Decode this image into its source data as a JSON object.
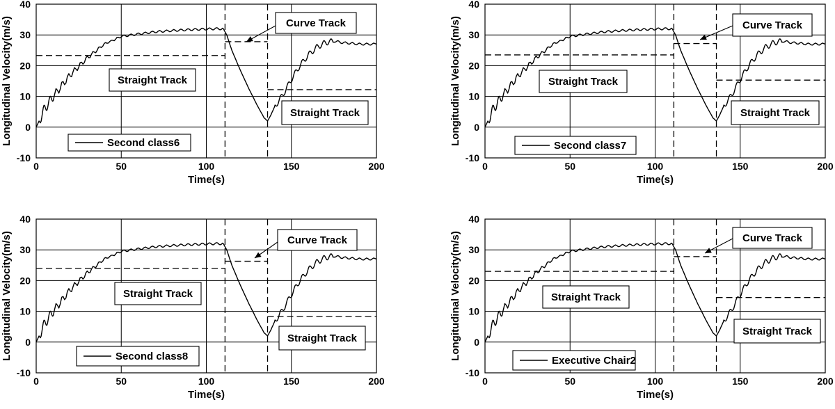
{
  "chart_data": [
    {
      "type": "line",
      "xlabel": "Time(s)",
      "ylabel": "Longitudinal Velocity(m/s)",
      "xlim": [
        0,
        200
      ],
      "ylim": [
        -10,
        40
      ],
      "xticks": [
        "0",
        "50",
        "100",
        "150",
        "200"
      ],
      "yticks": [
        "-10",
        "0",
        "10",
        "20",
        "30",
        "40"
      ],
      "grid": true,
      "legend_position": "bottom-left",
      "series": [
        {
          "name": "Second class6",
          "x": [
            0,
            5,
            10,
            20,
            30,
            40,
            50,
            60,
            70,
            80,
            90,
            100,
            105,
            110,
            112,
            115,
            120,
            125,
            130,
            134,
            136,
            138,
            140,
            145,
            150,
            155,
            160,
            165,
            170,
            175,
            180,
            190,
            200
          ],
          "y": [
            0,
            6,
            10,
            17,
            22.5,
            27,
            29.5,
            30.3,
            31,
            31.4,
            31.7,
            31.9,
            32,
            32,
            30,
            25,
            18.5,
            12.5,
            7,
            3,
            2,
            4,
            6.5,
            10.5,
            15.5,
            20,
            23.5,
            26,
            27.5,
            28,
            27.5,
            27,
            27
          ]
        }
      ],
      "reference_lines": {
        "segment_boundaries": [
          111,
          136
        ],
        "straight_track_1": {
          "x": [
            0,
            111
          ],
          "y": 23.3
        },
        "curve_track": {
          "x": [
            111,
            136
          ],
          "y": 27.8
        },
        "straight_track_2": {
          "x": [
            136,
            200
          ],
          "y": 12.2
        }
      },
      "annotations": {
        "curve": "Curve Track",
        "straight_left": "Straight Track",
        "straight_right": "Straight Track"
      }
    },
    {
      "type": "line",
      "xlabel": "Time(s)",
      "ylabel": "Longitudinal Velocity(m/s)",
      "xlim": [
        0,
        200
      ],
      "ylim": [
        -10,
        40
      ],
      "xticks": [
        "0",
        "50",
        "100",
        "150",
        "200"
      ],
      "yticks": [
        "-10",
        "0",
        "10",
        "20",
        "30",
        "40"
      ],
      "grid": true,
      "legend_position": "bottom-left",
      "series": [
        {
          "name": "Second class7",
          "x": [
            0,
            5,
            10,
            20,
            30,
            40,
            50,
            60,
            70,
            80,
            90,
            100,
            105,
            110,
            112,
            115,
            120,
            125,
            130,
            134,
            136,
            138,
            140,
            145,
            150,
            155,
            160,
            165,
            170,
            175,
            180,
            190,
            200
          ],
          "y": [
            0,
            6,
            10,
            17,
            22.5,
            27,
            29.5,
            30.3,
            31,
            31.4,
            31.7,
            31.9,
            32,
            32,
            30,
            25,
            18.5,
            12.5,
            7,
            3,
            2,
            4,
            6.5,
            10.5,
            15.5,
            20,
            23.5,
            26,
            27.5,
            28,
            27.5,
            27,
            27
          ]
        }
      ],
      "reference_lines": {
        "segment_boundaries": [
          111,
          136
        ],
        "straight_track_1": {
          "x": [
            0,
            111
          ],
          "y": 23.5
        },
        "curve_track": {
          "x": [
            111,
            136
          ],
          "y": 27.2
        },
        "straight_track_2": {
          "x": [
            136,
            200
          ],
          "y": 15.3
        }
      },
      "annotations": {
        "curve": "Curve Track",
        "straight_left": "Straight Track",
        "straight_right": "Straight Track"
      }
    },
    {
      "type": "line",
      "xlabel": "Time(s)",
      "ylabel": "Longitudinal Velocity(m/s)",
      "xlim": [
        0,
        200
      ],
      "ylim": [
        -10,
        40
      ],
      "xticks": [
        "0",
        "50",
        "100",
        "150",
        "200"
      ],
      "yticks": [
        "-10",
        "0",
        "10",
        "20",
        "30",
        "40"
      ],
      "grid": true,
      "legend_position": "bottom-left",
      "series": [
        {
          "name": "Second class8",
          "x": [
            0,
            5,
            10,
            20,
            30,
            40,
            50,
            60,
            70,
            80,
            90,
            100,
            105,
            110,
            112,
            115,
            120,
            125,
            130,
            134,
            136,
            138,
            140,
            145,
            150,
            155,
            160,
            165,
            170,
            175,
            180,
            190,
            200
          ],
          "y": [
            0,
            6,
            10,
            17,
            22.5,
            27,
            29.5,
            30.3,
            31,
            31.4,
            31.7,
            31.9,
            32,
            32,
            30,
            25,
            18.5,
            12.5,
            7,
            3,
            2,
            4,
            6.5,
            10.5,
            15.5,
            20,
            23.5,
            26,
            27.5,
            28,
            27.5,
            27,
            27
          ]
        }
      ],
      "reference_lines": {
        "segment_boundaries": [
          111,
          136
        ],
        "straight_track_1": {
          "x": [
            0,
            111
          ],
          "y": 24
        },
        "curve_track": {
          "x": [
            111,
            136
          ],
          "y": 26.3
        },
        "straight_track_2": {
          "x": [
            136,
            200
          ],
          "y": 8.3
        }
      },
      "annotations": {
        "curve": "Curve Track",
        "straight_left": "Straight Track",
        "straight_right": "Straight Track"
      }
    },
    {
      "type": "line",
      "xlabel": "Time(s)",
      "ylabel": "Longitudinal Velocity(m/s)",
      "xlim": [
        0,
        200
      ],
      "ylim": [
        -10,
        40
      ],
      "xticks": [
        "0",
        "50",
        "100",
        "150",
        "200"
      ],
      "yticks": [
        "-10",
        "0",
        "10",
        "20",
        "30",
        "40"
      ],
      "grid": true,
      "legend_position": "bottom-left",
      "series": [
        {
          "name": "Executive Chair2",
          "x": [
            0,
            5,
            10,
            20,
            30,
            40,
            50,
            60,
            70,
            80,
            90,
            100,
            105,
            110,
            112,
            115,
            120,
            125,
            130,
            134,
            136,
            138,
            140,
            145,
            150,
            155,
            160,
            165,
            170,
            175,
            180,
            190,
            200
          ],
          "y": [
            0,
            6,
            10,
            17,
            22.5,
            27,
            29.5,
            30.3,
            31,
            31.4,
            31.7,
            31.9,
            32,
            32,
            30,
            25,
            18.5,
            12.5,
            7,
            3,
            2,
            4,
            6.5,
            10.5,
            15.5,
            20,
            23.5,
            26,
            27.5,
            28,
            27.5,
            27,
            27
          ]
        }
      ],
      "reference_lines": {
        "segment_boundaries": [
          111,
          136
        ],
        "straight_track_1": {
          "x": [
            0,
            111
          ],
          "y": 23
        },
        "curve_track": {
          "x": [
            111,
            136
          ],
          "y": 27.8
        },
        "straight_track_2": {
          "x": [
            136,
            200
          ],
          "y": 14.5
        }
      },
      "annotations": {
        "curve": "Curve Track",
        "straight_left": "Straight Track",
        "straight_right": "Straight Track"
      }
    }
  ]
}
